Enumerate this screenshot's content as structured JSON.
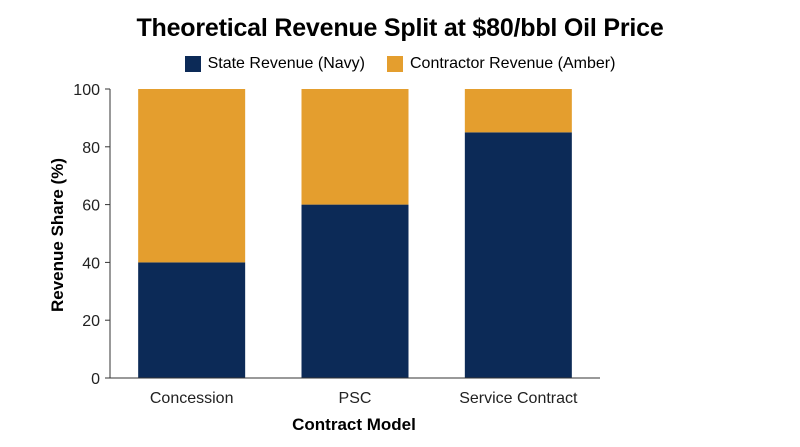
{
  "chart_data": {
    "type": "bar",
    "stacked": true,
    "title": "Theoretical Revenue Split at $80/bbl Oil Price",
    "xlabel": "Contract Model",
    "ylabel": "Revenue Share (%)",
    "categories": [
      "Concession",
      "PSC",
      "Service Contract"
    ],
    "series": [
      {
        "name": "State Revenue (Navy)",
        "values": [
          40,
          60,
          85
        ],
        "color": "#0c2a57"
      },
      {
        "name": "Contractor Revenue (Amber)",
        "values": [
          60,
          40,
          15
        ],
        "color": "#e49e2e"
      }
    ],
    "ylim": [
      0,
      100
    ],
    "yticks": [
      "0",
      "20",
      "40",
      "60",
      "80",
      "100"
    ],
    "grid": false,
    "legend_position": "top"
  }
}
